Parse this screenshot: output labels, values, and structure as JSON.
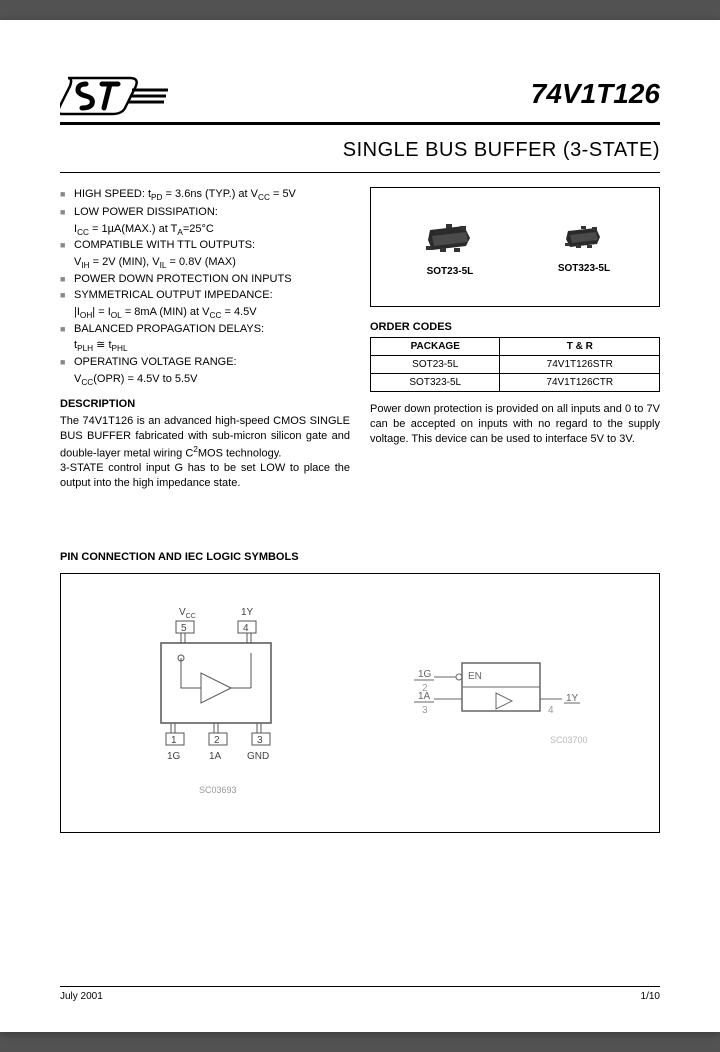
{
  "header": {
    "part_number": "74V1T126",
    "subtitle": "SINGLE BUS BUFFER (3-STATE)"
  },
  "features": [
    {
      "main": "HIGH SPEED: t<sub>PD</sub> = 3.6ns (TYP.) at V<sub>CC</sub> = 5V"
    },
    {
      "main": "LOW POWER DISSIPATION:",
      "sub": "I<sub>CC</sub> = 1µA(MAX.) at T<sub>A</sub>=25°C"
    },
    {
      "main": "COMPATIBLE WITH TTL OUTPUTS:",
      "sub": "V<sub>IH</sub> = 2V (MIN), V<sub>IL</sub> = 0.8V (MAX)"
    },
    {
      "main": "POWER DOWN PROTECTION ON INPUTS"
    },
    {
      "main": "SYMMETRICAL OUTPUT IMPEDANCE:",
      "sub": "|I<sub>OH</sub>| = I<sub>OL</sub> = 8mA (MIN) at V<sub>CC</sub> = 4.5V"
    },
    {
      "main": "BALANCED PROPAGATION DELAYS:",
      "sub": "t<sub>PLH</sub> ≅ t<sub>PHL</sub>"
    },
    {
      "main": "OPERATING VOLTAGE RANGE:",
      "sub": "V<sub>CC</sub>(OPR) = 4.5V to 5.5V"
    }
  ],
  "description": {
    "heading": "DESCRIPTION",
    "body": "The 74V1T126 is an advanced high-speed CMOS SINGLE BUS BUFFER fabricated with sub-micron silicon gate and double-layer metal wiring C<sup>2</sup>MOS technology.<br>3-STATE control input G has to be set LOW to place the output into the high impedance state."
  },
  "packages": {
    "items": [
      {
        "label": "SOT23-5L"
      },
      {
        "label": "SOT323-5L"
      }
    ]
  },
  "order_codes": {
    "heading": "ORDER CODES",
    "columns": [
      "PACKAGE",
      "T & R"
    ],
    "rows": [
      [
        "SOT23-5L",
        "74V1T126STR"
      ],
      [
        "SOT323-5L",
        "74V1T126CTR"
      ]
    ]
  },
  "right_desc": "Power down protection is provided on all inputs and 0 to 7V can be accepted on inputs with no regard to the supply voltage. This device can be used to interface 5V to 3V.",
  "pin_section": {
    "heading": "PIN CONNECTION AND IEC LOGIC SYMBOLS",
    "left_labels": {
      "vcc": "V<sub>CC</sub>",
      "p5": "5",
      "p4": "4",
      "p1": "1",
      "p2": "2",
      "p3": "3",
      "l1": "1Ĝ",
      "l2": "1A",
      "l3": "GND",
      "r4": "1Y",
      "code": "SC03693"
    },
    "right_labels": {
      "g": "1Ĝ",
      "g_num": "2",
      "a": "1A",
      "a_num": "3",
      "en": "EN",
      "y": "1Y",
      "y_num": "4",
      "code": "SC03700"
    }
  },
  "footer": {
    "date": "July 2001",
    "page": "1/10"
  },
  "colors": {
    "text": "#000000",
    "border": "#000000",
    "bg": "#ffffff",
    "chip": "#2a2a2a"
  }
}
